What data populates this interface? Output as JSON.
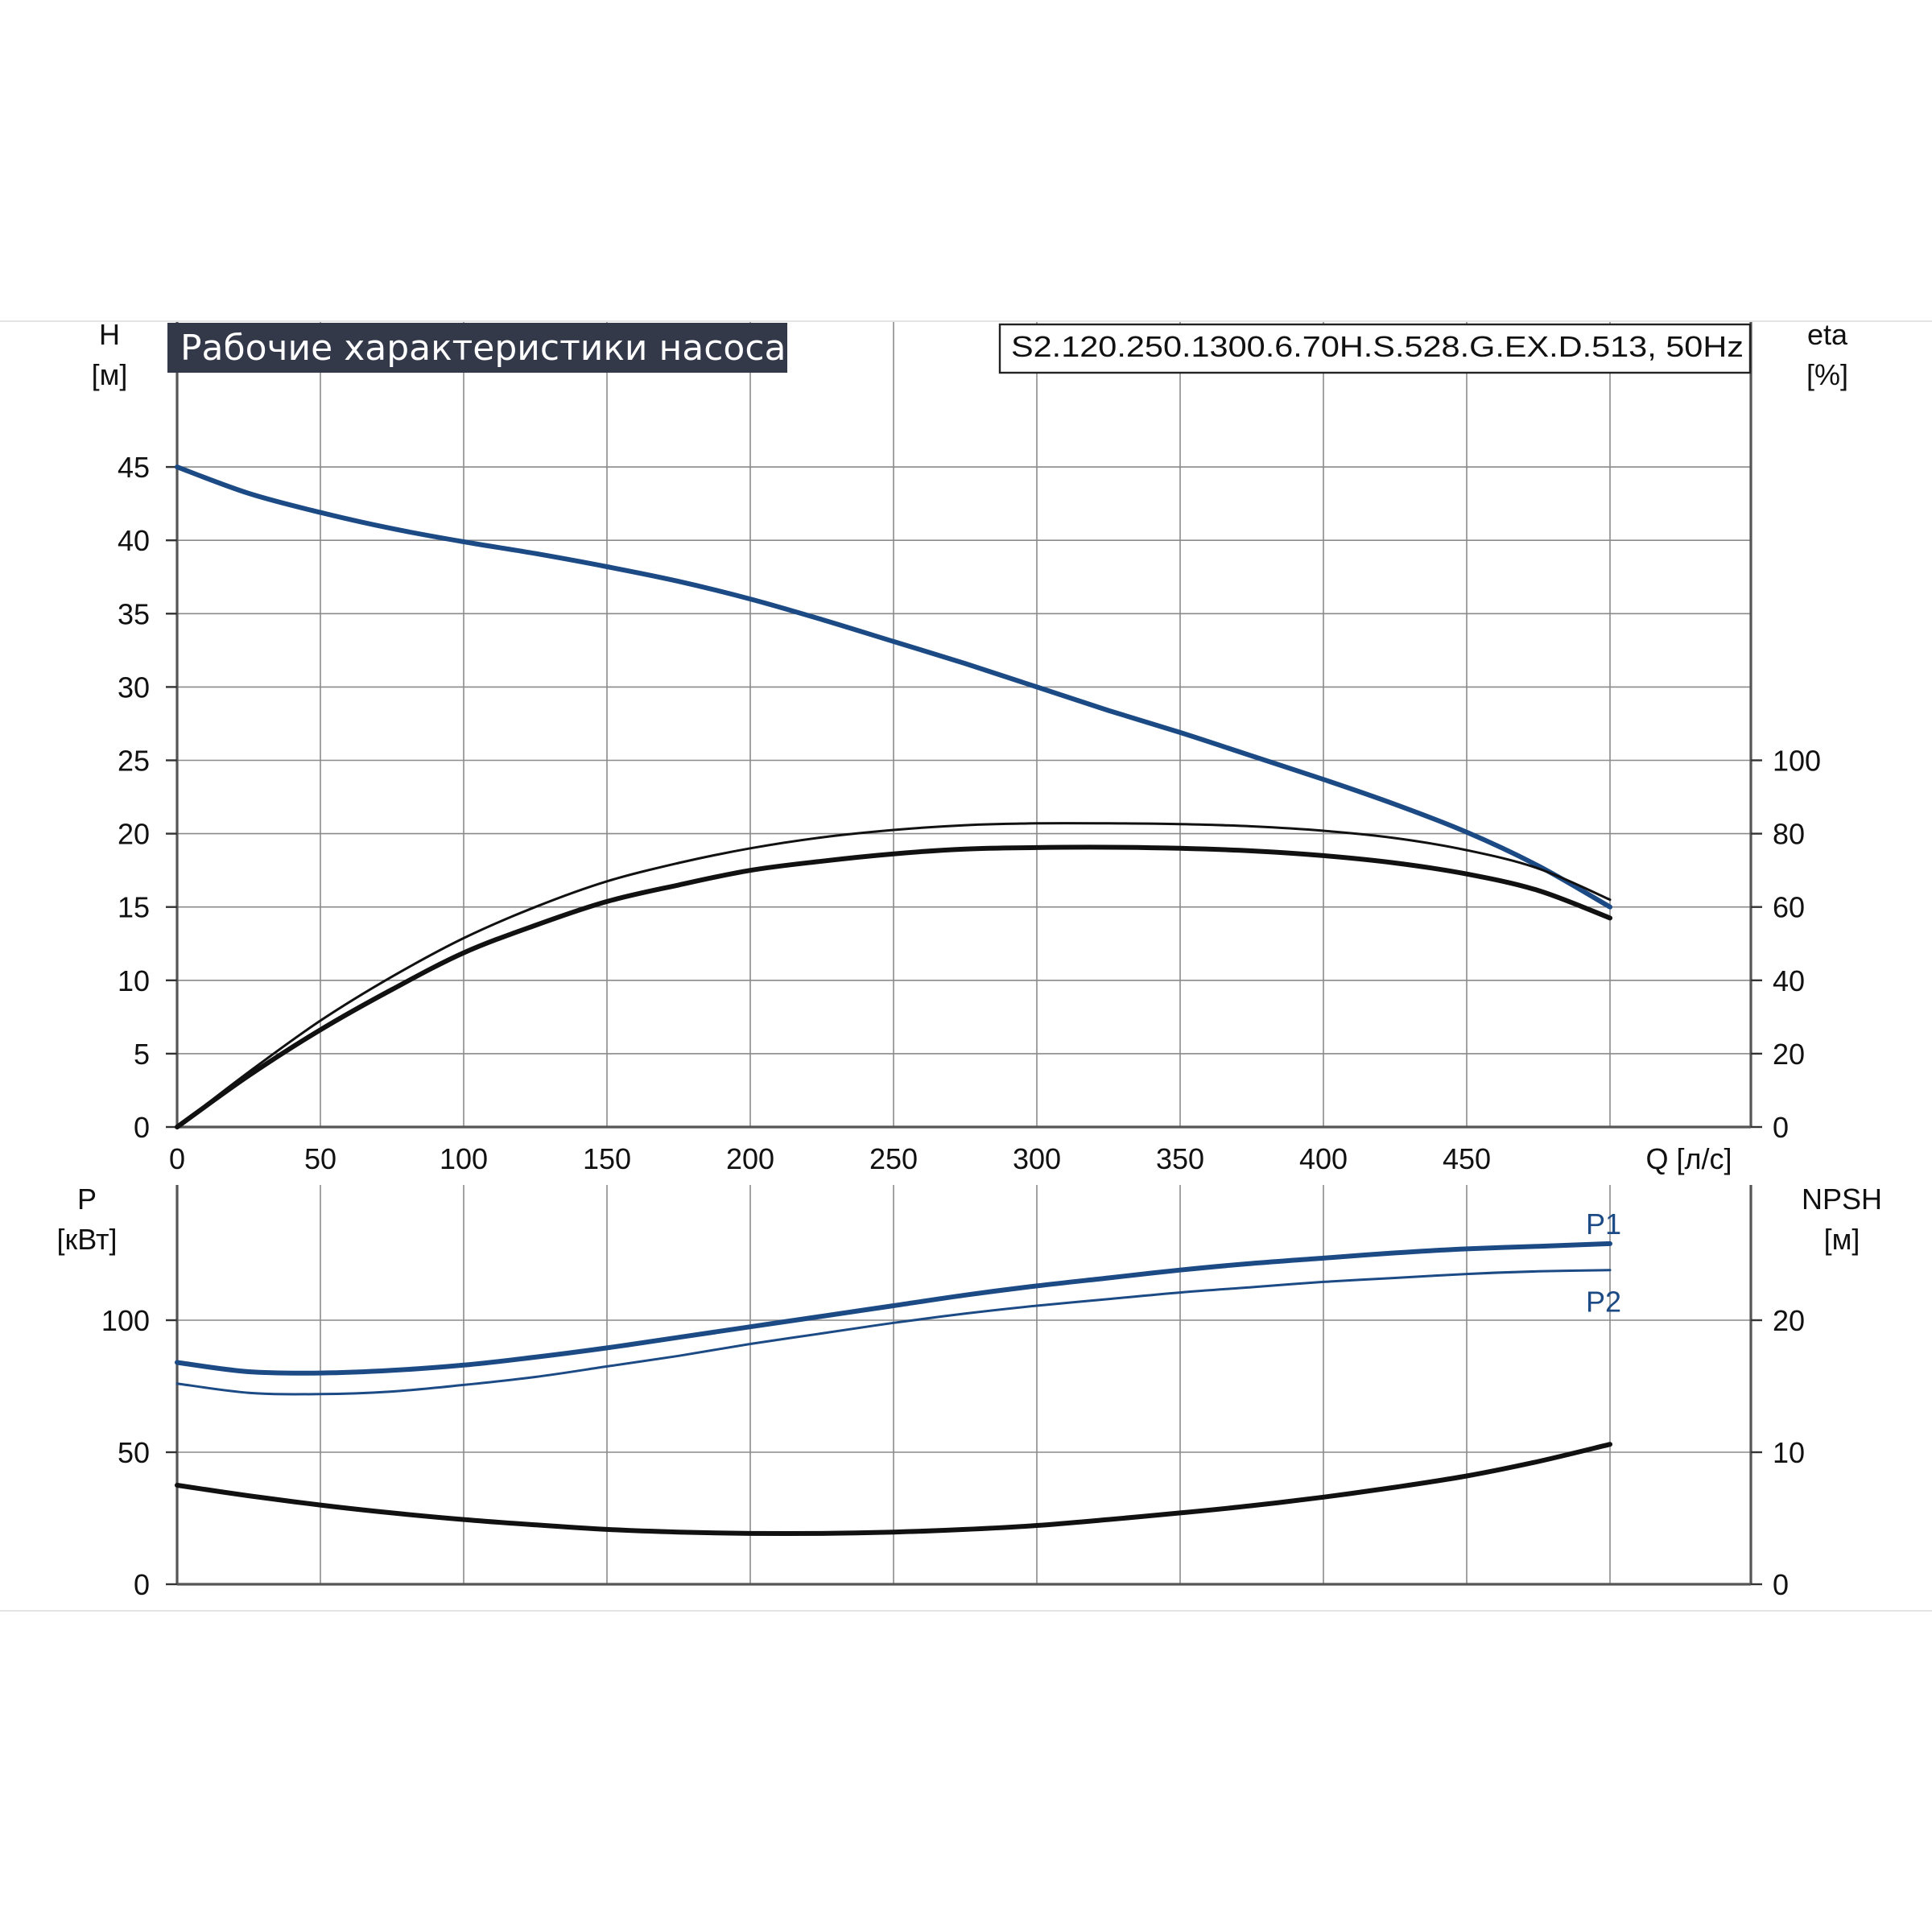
{
  "title": "Рабочие характеристики насоса",
  "model": "S2.120.250.1300.6.70H.S.528.G.EX.D.513, 50Hz",
  "colors": {
    "title_bg": "#34394a",
    "blue": "#1c4a85",
    "black": "#111111",
    "grid": "#8a8a8a"
  },
  "chart_data": [
    {
      "type": "line",
      "x_label": "Q [л/с]",
      "xlim": [
        0,
        550
      ],
      "x_ticks": [
        0,
        50,
        100,
        150,
        200,
        250,
        300,
        350,
        400,
        450
      ],
      "x_grid": [
        50,
        100,
        150,
        200,
        250,
        300,
        350,
        400,
        450,
        500
      ],
      "left_axis": {
        "label_top": "H",
        "label_bottom": "[м]",
        "ylim": [
          0,
          50
        ],
        "ticks": [
          0,
          5,
          10,
          15,
          20,
          25,
          30,
          35,
          40,
          45
        ],
        "grid": [
          5,
          10,
          15,
          20,
          25,
          30,
          35,
          40,
          45
        ]
      },
      "right_axis": {
        "label_top": "eta",
        "label_bottom": "[%]",
        "ylim": [
          0,
          200
        ],
        "ticks": [
          0,
          20,
          40,
          60,
          80,
          100
        ]
      },
      "grid": true,
      "series": [
        {
          "axis": "left",
          "color": "blue",
          "width": 6,
          "x": [
            0,
            25,
            50,
            75,
            100,
            125,
            150,
            175,
            200,
            225,
            250,
            275,
            300,
            325,
            350,
            375,
            400,
            425,
            450,
            475,
            500
          ],
          "y": [
            45.0,
            43.2,
            41.9,
            40.8,
            39.9,
            39.1,
            38.2,
            37.2,
            36.0,
            34.6,
            33.1,
            31.6,
            30.0,
            28.4,
            26.9,
            25.3,
            23.7,
            22.0,
            20.1,
            17.8,
            15.0
          ]
        },
        {
          "axis": "right",
          "color": "black",
          "width": 3,
          "x": [
            0,
            25,
            50,
            75,
            100,
            125,
            150,
            175,
            200,
            225,
            250,
            275,
            300,
            325,
            350,
            375,
            400,
            425,
            450,
            475,
            500
          ],
          "y": [
            0,
            15,
            29,
            41,
            51.5,
            60,
            67,
            72,
            76,
            79,
            81,
            82.3,
            82.8,
            82.8,
            82.6,
            82,
            80.8,
            78.8,
            75.5,
            70.5,
            62
          ]
        },
        {
          "axis": "right",
          "color": "black",
          "width": 6,
          "x": [
            0,
            25,
            50,
            75,
            100,
            125,
            150,
            175,
            200,
            225,
            250,
            275,
            300,
            325,
            350,
            375,
            400,
            425,
            450,
            475,
            500
          ],
          "y": [
            0,
            14,
            26.5,
            37.5,
            47.5,
            55,
            61.5,
            66,
            70,
            72.5,
            74.5,
            75.8,
            76.2,
            76.3,
            76,
            75.3,
            74,
            72,
            69,
            64.5,
            57
          ]
        }
      ]
    },
    {
      "type": "line",
      "x_label": "",
      "xlim": [
        0,
        550
      ],
      "x_grid": [
        50,
        100,
        150,
        200,
        250,
        300,
        350,
        400,
        450,
        500
      ],
      "left_axis": {
        "label_top": "P",
        "label_bottom": "[кВт]",
        "ylim": [
          0,
          150
        ],
        "ticks": [
          0,
          50,
          100
        ],
        "grid": [
          50,
          100
        ]
      },
      "right_axis": {
        "label_top": "NPSH",
        "label_bottom": "[м]",
        "ylim": [
          0,
          30
        ],
        "ticks": [
          0,
          10,
          20
        ]
      },
      "grid": true,
      "series": [
        {
          "name": "P1",
          "axis": "left",
          "color": "blue",
          "width": 6,
          "x": [
            0,
            25,
            50,
            75,
            100,
            125,
            150,
            175,
            200,
            225,
            250,
            275,
            300,
            325,
            350,
            375,
            400,
            425,
            450,
            475,
            500
          ],
          "y": [
            84,
            80.5,
            80,
            81,
            83,
            86,
            89.5,
            93.5,
            97.5,
            101.5,
            105.5,
            109.5,
            113,
            116,
            119,
            121.5,
            123.5,
            125.5,
            127,
            128,
            129
          ]
        },
        {
          "name": "P2",
          "axis": "left",
          "color": "blue",
          "width": 3,
          "x": [
            0,
            25,
            50,
            75,
            100,
            125,
            150,
            175,
            200,
            225,
            250,
            275,
            300,
            325,
            350,
            375,
            400,
            425,
            450,
            475,
            500
          ],
          "y": [
            76,
            72.5,
            72,
            73,
            75.5,
            78.5,
            82.5,
            86.5,
            91,
            95,
            99,
            102.5,
            105.5,
            108,
            110.5,
            112.5,
            114.5,
            116,
            117.5,
            118.5,
            119
          ]
        },
        {
          "axis": "right",
          "color": "black",
          "width": 6,
          "x": [
            0,
            25,
            50,
            75,
            100,
            125,
            150,
            175,
            200,
            225,
            250,
            275,
            300,
            325,
            350,
            375,
            400,
            425,
            450,
            475,
            500
          ],
          "y": [
            7.5,
            6.7,
            6,
            5.4,
            4.9,
            4.5,
            4.15,
            3.95,
            3.85,
            3.85,
            3.95,
            4.15,
            4.45,
            4.9,
            5.4,
            5.95,
            6.6,
            7.35,
            8.2,
            9.3,
            10.6
          ]
        }
      ]
    }
  ]
}
